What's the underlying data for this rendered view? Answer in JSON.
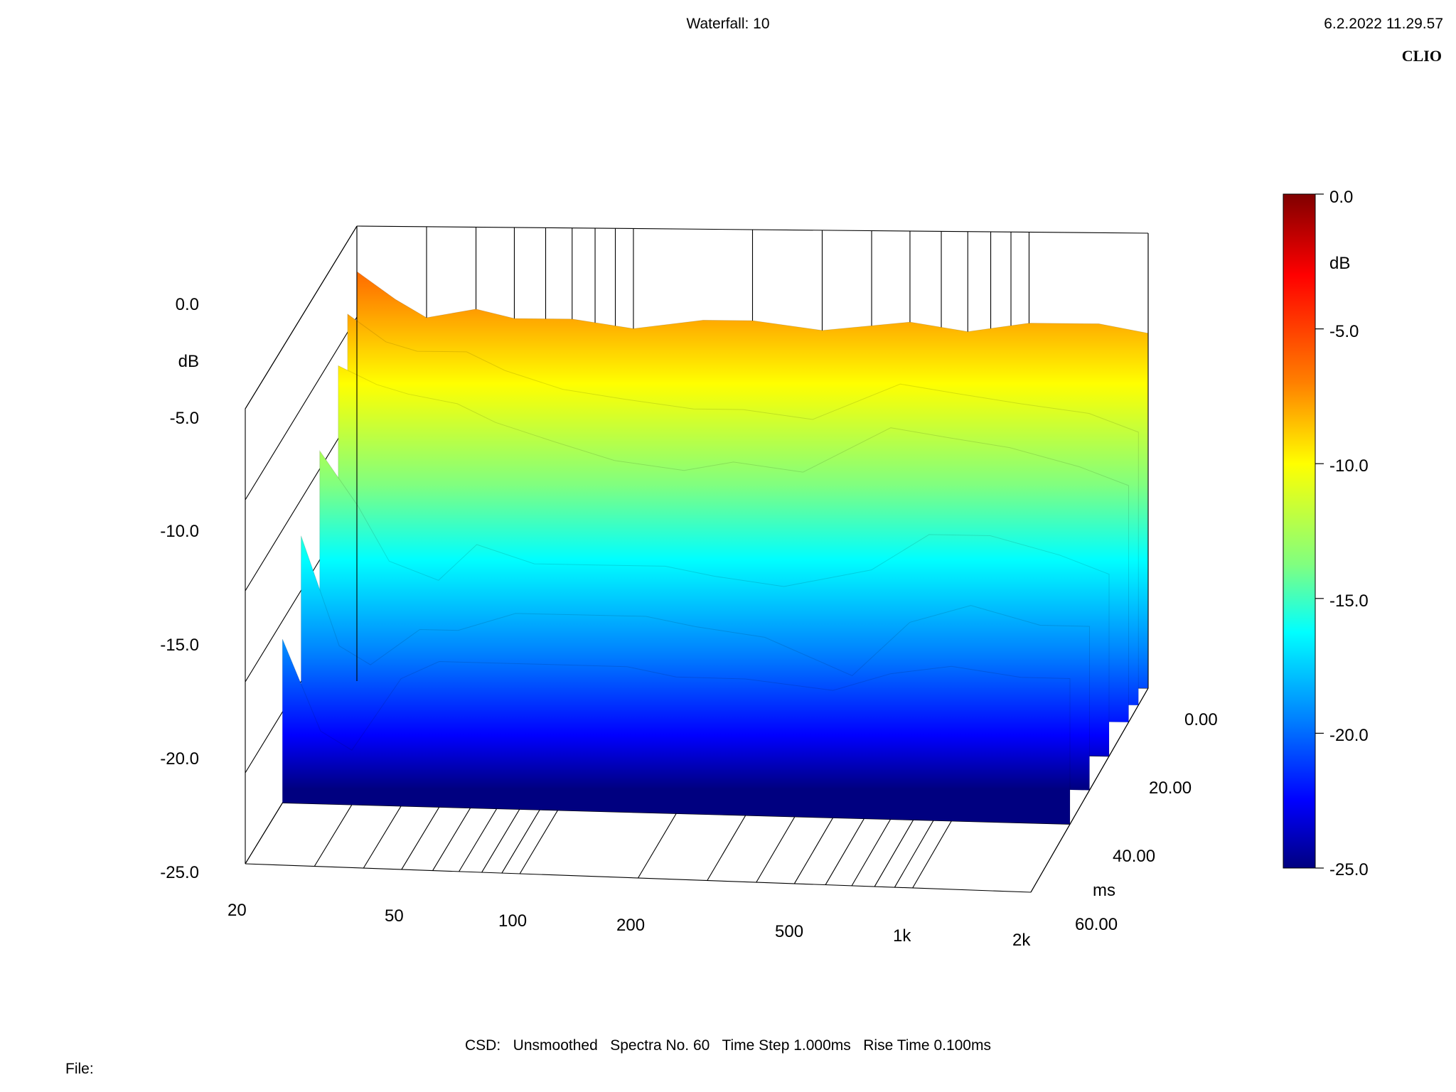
{
  "header": {
    "title": "Waterfall: 10",
    "datetime": "6.2.2022 11.29.57",
    "brand": "CLIO"
  },
  "footer": {
    "text": "CSD:   Unsmoothed   Spectra No. 60   Time Step 1.000ms   Rise Time 0.100ms",
    "file_label": "File:"
  },
  "chart_data": {
    "type": "waterfall",
    "title": "Waterfall: 10",
    "x_axis": {
      "scale": "log",
      "range": [
        20,
        2000
      ],
      "tick_labels": [
        "20",
        "50",
        "100",
        "200",
        "500",
        "1k",
        "2k"
      ],
      "tick_values": [
        20,
        50,
        100,
        200,
        500,
        1000,
        2000
      ]
    },
    "z_axis": {
      "label": "dB",
      "range": [
        -25,
        0
      ],
      "tick_labels": [
        "0.0",
        "-5.0",
        "-10.0",
        "-15.0",
        "-20.0",
        "-25.0"
      ],
      "tick_values": [
        0,
        -5,
        -10,
        -15,
        -20,
        -25
      ]
    },
    "t_axis": {
      "label": "ms",
      "range": [
        0,
        60
      ],
      "tick_labels": [
        "0.00",
        "20.00",
        "40.00",
        "60.00"
      ],
      "tick_values": [
        0,
        20,
        40,
        60
      ]
    },
    "colorbar": {
      "label": "dB",
      "range": [
        -25,
        0
      ],
      "tick_labels": [
        "0.0",
        "-5.0",
        "-10.0",
        "-15.0",
        "-20.0",
        "-25.0"
      ],
      "tick_values": [
        0,
        -5,
        -10,
        -15,
        -20,
        -25
      ],
      "colors": [
        "#800000",
        "#ff0000",
        "#ff8000",
        "#ffff00",
        "#80ff80",
        "#00ffff",
        "#0080ff",
        "#0000ff",
        "#000080"
      ]
    },
    "slices": [
      {
        "time_ms": 0,
        "points": [
          [
            20,
            -2.5
          ],
          [
            25,
            -4
          ],
          [
            30,
            -5
          ],
          [
            40,
            -4.5
          ],
          [
            50,
            -5
          ],
          [
            70,
            -5
          ],
          [
            100,
            -5.5
          ],
          [
            150,
            -5
          ],
          [
            200,
            -5
          ],
          [
            300,
            -5.5
          ],
          [
            500,
            -5
          ],
          [
            700,
            -5.5
          ],
          [
            1000,
            -5
          ],
          [
            1500,
            -5
          ],
          [
            2000,
            -5.5
          ]
        ]
      },
      {
        "time_ms": 5,
        "points": [
          [
            20,
            -4
          ],
          [
            25,
            -5.5
          ],
          [
            30,
            -6
          ],
          [
            40,
            -6
          ],
          [
            50,
            -7
          ],
          [
            70,
            -8
          ],
          [
            100,
            -8.5
          ],
          [
            150,
            -9
          ],
          [
            200,
            -9
          ],
          [
            300,
            -9.5
          ],
          [
            500,
            -7.5
          ],
          [
            700,
            -8
          ],
          [
            1000,
            -8.5
          ],
          [
            1500,
            -9
          ],
          [
            2000,
            -10
          ]
        ]
      },
      {
        "time_ms": 10,
        "points": [
          [
            20,
            -6
          ],
          [
            25,
            -7
          ],
          [
            30,
            -7.5
          ],
          [
            40,
            -8
          ],
          [
            50,
            -9
          ],
          [
            70,
            -10
          ],
          [
            100,
            -11
          ],
          [
            150,
            -11.5
          ],
          [
            200,
            -11
          ],
          [
            300,
            -11.5
          ],
          [
            500,
            -9
          ],
          [
            700,
            -9.5
          ],
          [
            1000,
            -10
          ],
          [
            1500,
            -11
          ],
          [
            2000,
            -12
          ]
        ]
      },
      {
        "time_ms": 20,
        "points": [
          [
            20,
            -9
          ],
          [
            25,
            -12
          ],
          [
            30,
            -15
          ],
          [
            40,
            -16
          ],
          [
            50,
            -14
          ],
          [
            70,
            -15
          ],
          [
            100,
            -15
          ],
          [
            150,
            -15
          ],
          [
            200,
            -15.5
          ],
          [
            300,
            -16
          ],
          [
            500,
            -15
          ],
          [
            700,
            -13
          ],
          [
            1000,
            -13
          ],
          [
            1500,
            -14
          ],
          [
            2000,
            -15
          ]
        ]
      },
      {
        "time_ms": 30,
        "points": [
          [
            20,
            -12
          ],
          [
            25,
            -18
          ],
          [
            30,
            -19
          ],
          [
            40,
            -17
          ],
          [
            50,
            -17
          ],
          [
            70,
            -16
          ],
          [
            100,
            -16
          ],
          [
            150,
            -16
          ],
          [
            200,
            -16.5
          ],
          [
            300,
            -17
          ],
          [
            500,
            -19
          ],
          [
            700,
            -16
          ],
          [
            1000,
            -15
          ],
          [
            1500,
            -16
          ],
          [
            2000,
            -16
          ]
        ]
      },
      {
        "time_ms": 40,
        "points": [
          [
            20,
            -16
          ],
          [
            25,
            -21
          ],
          [
            30,
            -22
          ],
          [
            40,
            -18
          ],
          [
            50,
            -17
          ],
          [
            70,
            -17
          ],
          [
            100,
            -17
          ],
          [
            150,
            -17
          ],
          [
            200,
            -17.5
          ],
          [
            300,
            -17.5
          ],
          [
            500,
            -18
          ],
          [
            700,
            -17
          ],
          [
            1000,
            -16.5
          ],
          [
            1500,
            -17
          ],
          [
            2000,
            -17
          ]
        ]
      }
    ]
  }
}
